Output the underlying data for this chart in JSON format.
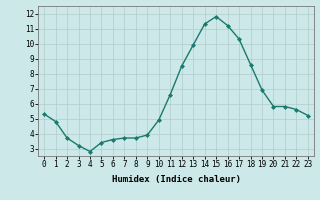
{
  "x": [
    0,
    1,
    2,
    3,
    4,
    5,
    6,
    7,
    8,
    9,
    10,
    11,
    12,
    13,
    14,
    15,
    16,
    17,
    18,
    19,
    20,
    21,
    22,
    23
  ],
  "y": [
    5.3,
    4.8,
    3.7,
    3.2,
    2.8,
    3.4,
    3.6,
    3.7,
    3.7,
    3.9,
    4.9,
    6.6,
    8.5,
    9.9,
    11.3,
    11.8,
    11.2,
    10.3,
    8.6,
    6.9,
    5.8,
    5.8,
    5.6,
    5.2
  ],
  "line_color": "#1a7a6e",
  "marker": "D",
  "marker_size": 2.0,
  "bg_color": "#cce8e8",
  "grid_color": "#b0cccc",
  "xlabel": "Humidex (Indice chaleur)",
  "ylim": [
    2.5,
    12.5
  ],
  "xlim": [
    -0.5,
    23.5
  ],
  "yticks": [
    3,
    4,
    5,
    6,
    7,
    8,
    9,
    10,
    11,
    12
  ],
  "xticks": [
    0,
    1,
    2,
    3,
    4,
    5,
    6,
    7,
    8,
    9,
    10,
    11,
    12,
    13,
    14,
    15,
    16,
    17,
    18,
    19,
    20,
    21,
    22,
    23
  ],
  "tick_fontsize": 5.5,
  "xlabel_fontsize": 6.5,
  "linewidth": 1.0
}
